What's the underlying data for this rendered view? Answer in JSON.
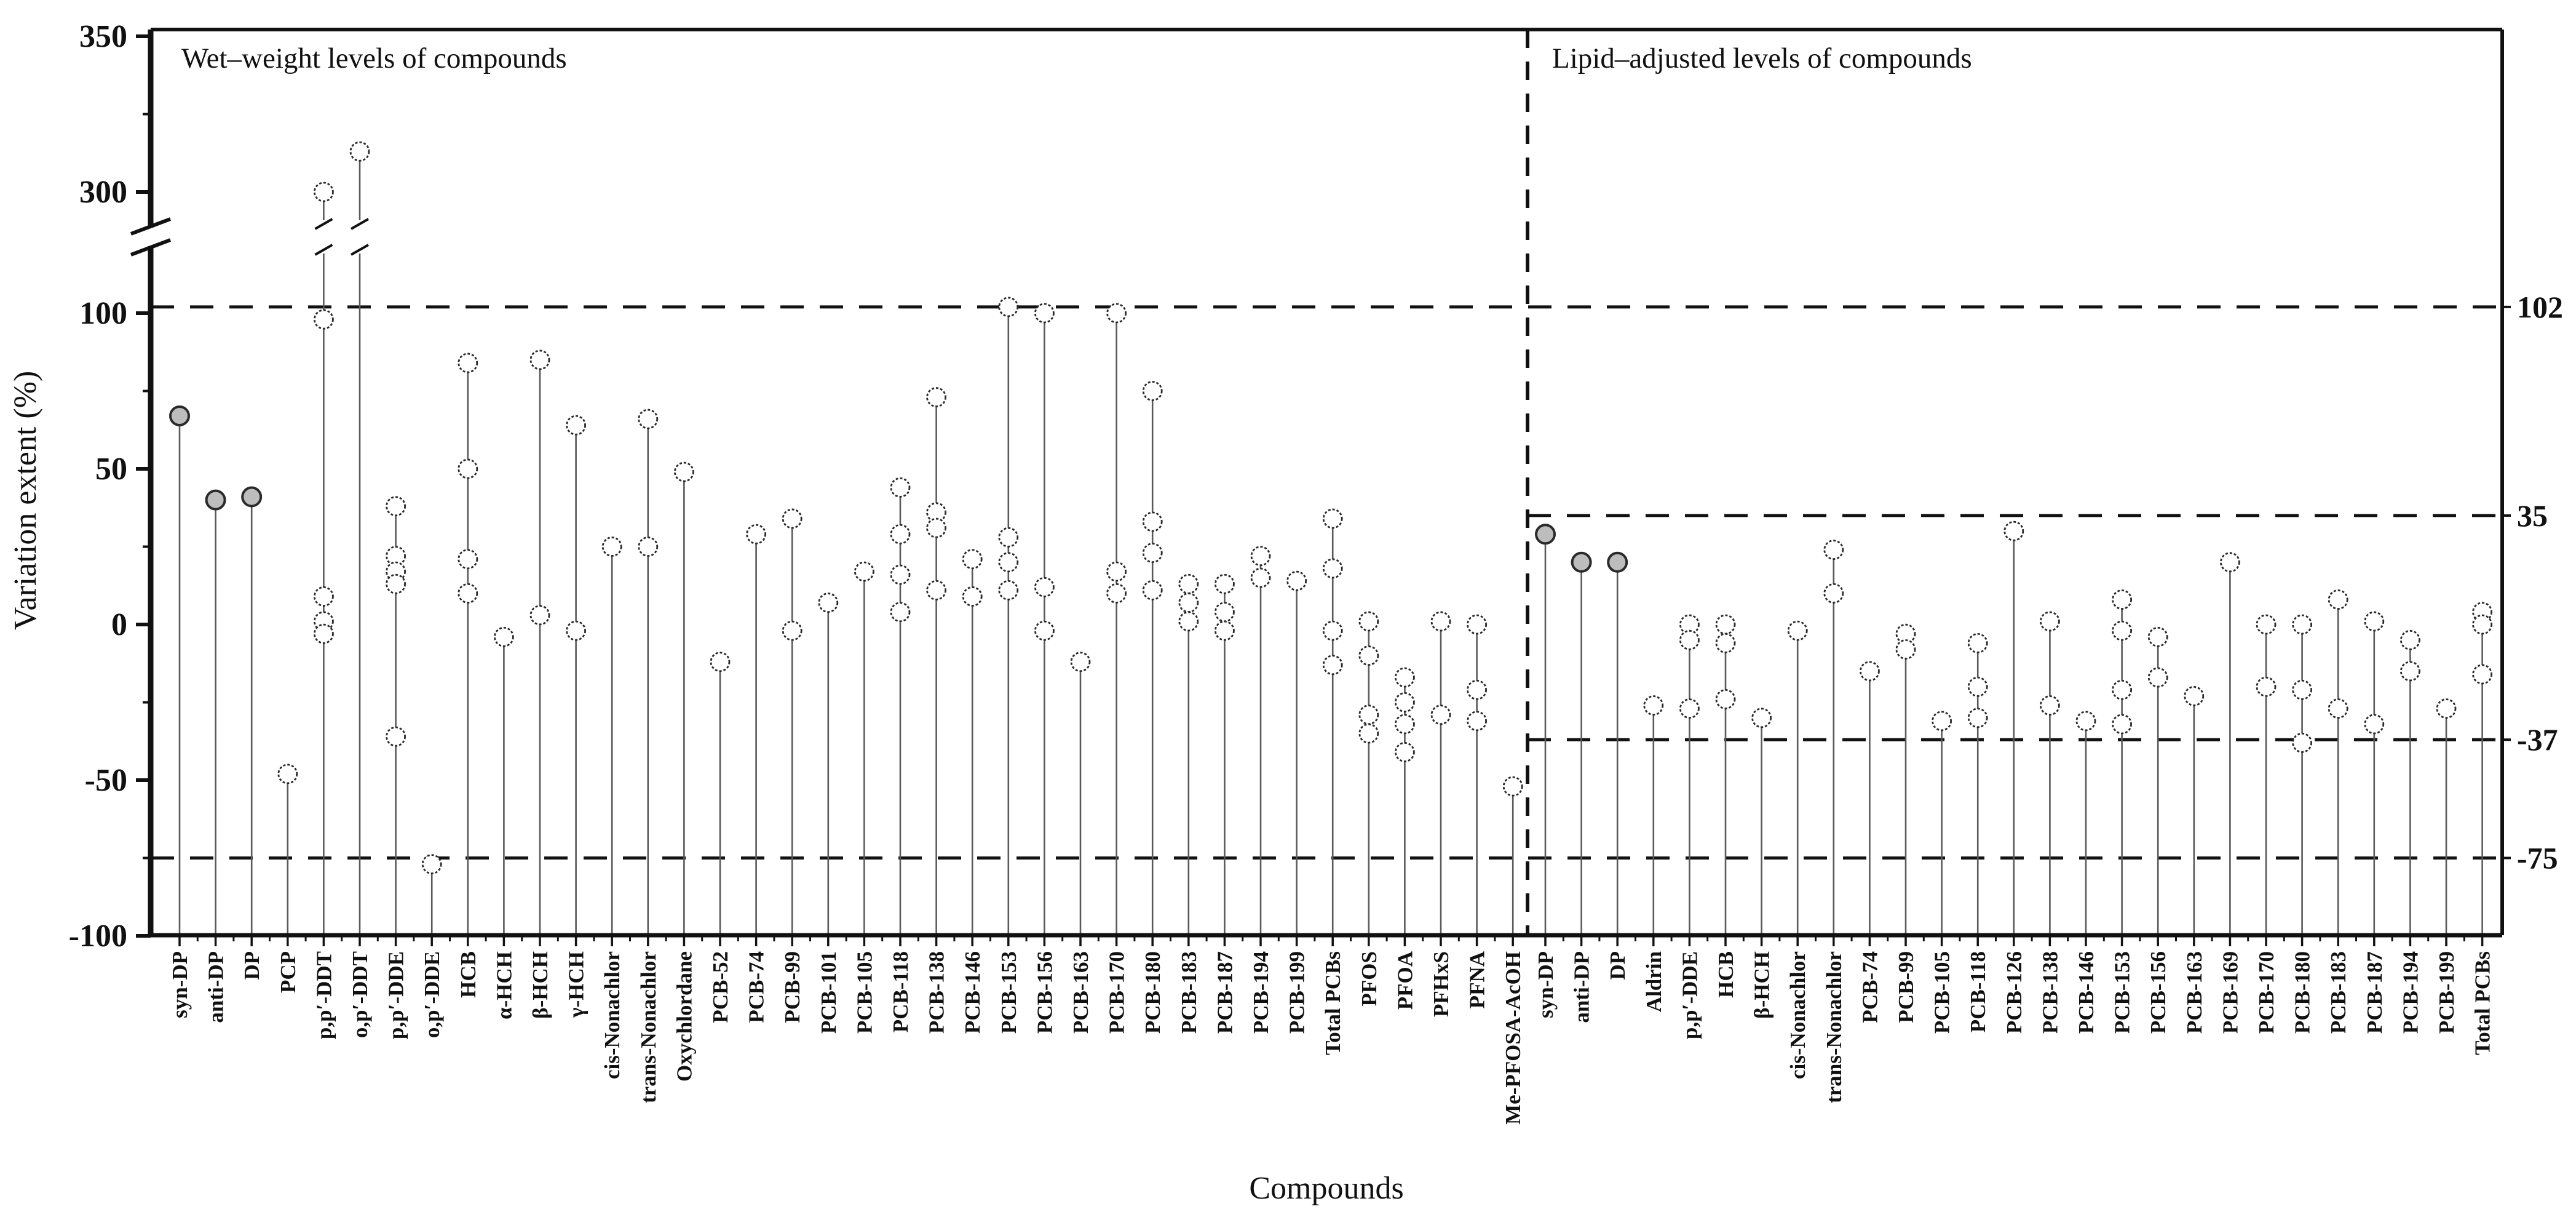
{
  "chart_data": {
    "type": "lollipop",
    "ylabel": "Variation extent (%)",
    "xlabel": "Compounds",
    "y_axis": {
      "major_ticks": [
        350,
        300,
        100,
        50,
        0,
        -50,
        -100
      ],
      "minor_ticks": [
        325,
        75,
        25,
        -25,
        -75
      ],
      "axis_break_between": [
        115,
        290
      ],
      "ylim": [
        -100,
        350
      ]
    },
    "right_axis_labels": [
      "102",
      "35",
      "-37",
      "-75"
    ],
    "reference_lines": {
      "full_width": [
        102,
        -75
      ],
      "right_panel_only": [
        35,
        -37
      ],
      "vertical_panel_divider": true
    },
    "legend_note": "filled gray circles = DP-related compounds (syn-DP, anti-DP, DP); open circles = all other compounds",
    "panels": [
      {
        "title": "Wet–weight levels of compounds",
        "compounds": [
          {
            "name": "syn-DP",
            "values": [
              67
            ],
            "filled": true
          },
          {
            "name": "anti-DP",
            "values": [
              40
            ],
            "filled": true
          },
          {
            "name": "DP",
            "values": [
              41
            ],
            "filled": true
          },
          {
            "name": "PCP",
            "values": [
              -48
            ],
            "filled": false
          },
          {
            "name": "p,p′-DDT",
            "values": [
              300,
              98,
              9,
              1,
              -3
            ],
            "filled": false
          },
          {
            "name": "o,p′-DDT",
            "values": [
              313
            ],
            "filled": false
          },
          {
            "name": "p,p′-DDE",
            "values": [
              38,
              22,
              17,
              13,
              -36
            ],
            "filled": false
          },
          {
            "name": "o,p′-DDE",
            "values": [
              -77
            ],
            "filled": false
          },
          {
            "name": "HCB",
            "values": [
              84,
              50,
              21,
              10
            ],
            "filled": false
          },
          {
            "name": "α-HCH",
            "values": [
              -4
            ],
            "filled": false
          },
          {
            "name": "β-HCH",
            "values": [
              85,
              3
            ],
            "filled": false
          },
          {
            "name": "γ-HCH",
            "values": [
              64,
              -2
            ],
            "filled": false
          },
          {
            "name": "cis-Nonachlor",
            "values": [
              25
            ],
            "filled": false
          },
          {
            "name": "trans-Nonachlor",
            "values": [
              66,
              25
            ],
            "filled": false
          },
          {
            "name": "Oxychlordane",
            "values": [
              49
            ],
            "filled": false
          },
          {
            "name": "PCB-52",
            "values": [
              -12
            ],
            "filled": false
          },
          {
            "name": "PCB-74",
            "values": [
              29
            ],
            "filled": false
          },
          {
            "name": "PCB-99",
            "values": [
              34,
              -2
            ],
            "filled": false
          },
          {
            "name": "PCB-101",
            "values": [
              7
            ],
            "filled": false
          },
          {
            "name": "PCB-105",
            "values": [
              17
            ],
            "filled": false
          },
          {
            "name": "PCB-118",
            "values": [
              44,
              29,
              16,
              4
            ],
            "filled": false
          },
          {
            "name": "PCB-138",
            "values": [
              73,
              36,
              31,
              11
            ],
            "filled": false
          },
          {
            "name": "PCB-146",
            "values": [
              21,
              9
            ],
            "filled": false
          },
          {
            "name": "PCB-153",
            "values": [
              102,
              28,
              20,
              11
            ],
            "filled": false
          },
          {
            "name": "PCB-156",
            "values": [
              100,
              12,
              -2
            ],
            "filled": false
          },
          {
            "name": "PCB-163",
            "values": [
              -12
            ],
            "filled": false
          },
          {
            "name": "PCB-170",
            "values": [
              100,
              17,
              10
            ],
            "filled": false
          },
          {
            "name": "PCB-180",
            "values": [
              75,
              33,
              23,
              11
            ],
            "filled": false
          },
          {
            "name": "PCB-183",
            "values": [
              13,
              7,
              1
            ],
            "filled": false
          },
          {
            "name": "PCB-187",
            "values": [
              13,
              4,
              -2
            ],
            "filled": false
          },
          {
            "name": "PCB-194",
            "values": [
              22,
              15
            ],
            "filled": false
          },
          {
            "name": "PCB-199",
            "values": [
              14
            ],
            "filled": false
          },
          {
            "name": "Total PCBs",
            "values": [
              34,
              18,
              -2,
              -13
            ],
            "filled": false
          },
          {
            "name": "PFOS",
            "values": [
              1,
              -10,
              -29,
              -35
            ],
            "filled": false
          },
          {
            "name": "PFOA",
            "values": [
              -17,
              -25,
              -32,
              -41
            ],
            "filled": false
          },
          {
            "name": "PFHxS",
            "values": [
              1,
              -29
            ],
            "filled": false
          },
          {
            "name": "PFNA",
            "values": [
              0,
              -21,
              -31
            ],
            "filled": false
          },
          {
            "name": "Me-PFOSA-AcOH",
            "values": [
              -52
            ],
            "filled": false
          }
        ]
      },
      {
        "title": "Lipid–adjusted levels of compounds",
        "compounds": [
          {
            "name": "syn-DP",
            "values": [
              29
            ],
            "filled": true
          },
          {
            "name": "anti-DP",
            "values": [
              20
            ],
            "filled": true
          },
          {
            "name": "DP",
            "values": [
              20
            ],
            "filled": true
          },
          {
            "name": "Aldrin",
            "values": [
              -26
            ],
            "filled": false
          },
          {
            "name": "p,p′-DDE",
            "values": [
              0,
              -5,
              -27
            ],
            "filled": false
          },
          {
            "name": "HCB",
            "values": [
              0,
              -6,
              -24
            ],
            "filled": false
          },
          {
            "name": "β-HCH",
            "values": [
              -30
            ],
            "filled": false
          },
          {
            "name": "cis-Nonachlor",
            "values": [
              -2
            ],
            "filled": false
          },
          {
            "name": "trans-Nonachlor",
            "values": [
              24,
              10
            ],
            "filled": false
          },
          {
            "name": "PCB-74",
            "values": [
              -15
            ],
            "filled": false
          },
          {
            "name": "PCB-99",
            "values": [
              -3,
              -8
            ],
            "filled": false
          },
          {
            "name": "PCB-105",
            "values": [
              -31
            ],
            "filled": false
          },
          {
            "name": "PCB-118",
            "values": [
              -6,
              -20,
              -30
            ],
            "filled": false
          },
          {
            "name": "PCB-126",
            "values": [
              30
            ],
            "filled": false
          },
          {
            "name": "PCB-138",
            "values": [
              1,
              -26
            ],
            "filled": false
          },
          {
            "name": "PCB-146",
            "values": [
              -31
            ],
            "filled": false
          },
          {
            "name": "PCB-153",
            "values": [
              8,
              -2,
              -21,
              -32
            ],
            "filled": false
          },
          {
            "name": "PCB-156",
            "values": [
              -4,
              -17
            ],
            "filled": false
          },
          {
            "name": "PCB-163",
            "values": [
              -23
            ],
            "filled": false
          },
          {
            "name": "PCB-169",
            "values": [
              20
            ],
            "filled": false
          },
          {
            "name": "PCB-170",
            "values": [
              0,
              -20
            ],
            "filled": false
          },
          {
            "name": "PCB-180",
            "values": [
              0,
              -21,
              -38
            ],
            "filled": false
          },
          {
            "name": "PCB-183",
            "values": [
              8,
              -27
            ],
            "filled": false
          },
          {
            "name": "PCB-187",
            "values": [
              1,
              -32
            ],
            "filled": false
          },
          {
            "name": "PCB-194",
            "values": [
              -5,
              -15
            ],
            "filled": false
          },
          {
            "name": "PCB-199",
            "values": [
              -27
            ],
            "filled": false
          },
          {
            "name": "Total PCBs",
            "values": [
              4,
              0,
              -16
            ],
            "filled": false
          }
        ]
      }
    ],
    "style": {
      "open_circle_fill": "#ffffff",
      "filled_circle_fill": "#bdbdbd",
      "circle_stroke": "#2a2a2a",
      "stem_color": "#5a5a5a",
      "axis_color": "#111111"
    }
  }
}
